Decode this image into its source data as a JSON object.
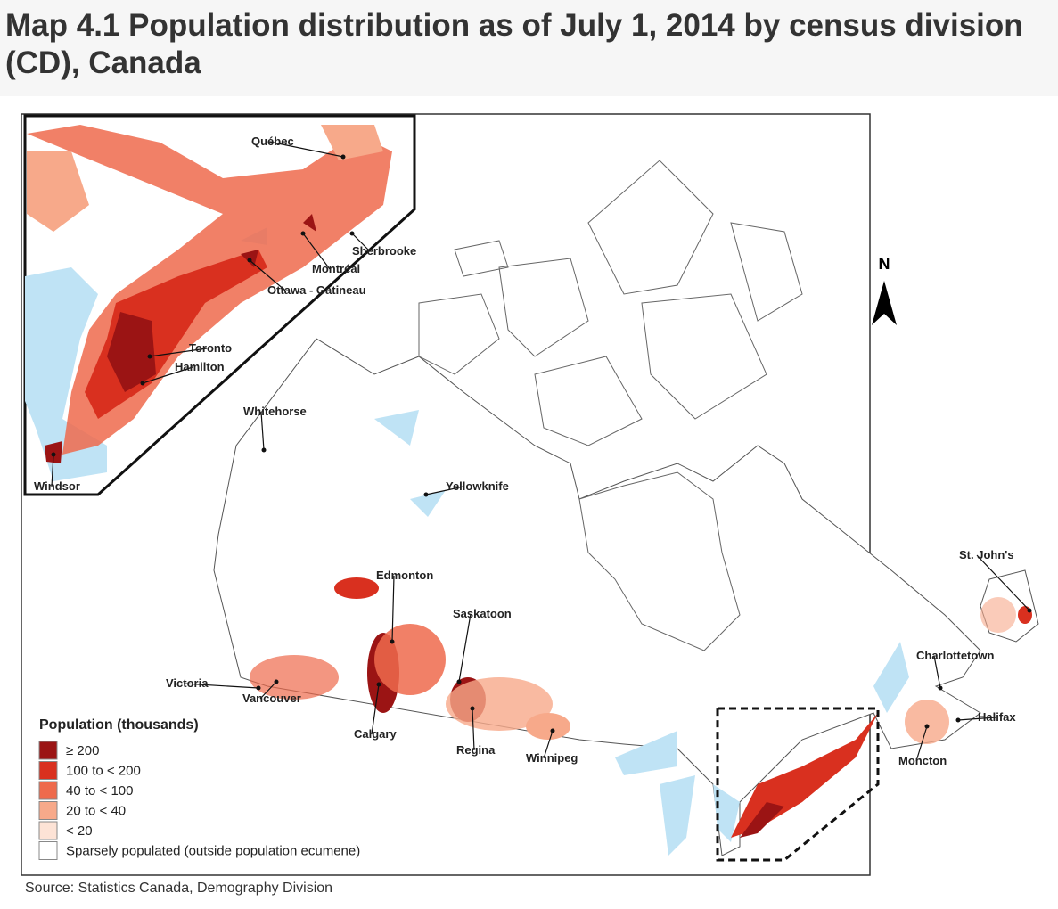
{
  "header": {
    "title": "Map 4.1 Population distribution as of July 1, 2014 by census division (CD), Canada"
  },
  "map": {
    "north": "N",
    "cities": [
      "Québec",
      "Sherbrooke",
      "Montréal",
      "Ottawa - Gatineau",
      "Toronto",
      "Hamilton",
      "Windsor",
      "Whitehorse",
      "Yellowknife",
      "Edmonton",
      "Saskatoon",
      "Victoria",
      "Vancouver",
      "Calgary",
      "Regina",
      "Winnipeg",
      "St. John's",
      "Charlottetown",
      "Halifax",
      "Moncton"
    ],
    "legend": {
      "title": "Population (thousands)",
      "items": [
        {
          "label": "≥ 200",
          "color": "#9b1414"
        },
        {
          "label": "100 to < 200",
          "color": "#d9301f"
        },
        {
          "label": "40 to < 100",
          "color": "#ee6a4c"
        },
        {
          "label": "20 to < 40",
          "color": "#f7a98a"
        },
        {
          "label": "< 20",
          "color": "#fde3d6"
        },
        {
          "label": "Sparsely populated (outside population ecumene)",
          "color": "#ffffff"
        }
      ]
    }
  },
  "footer": {
    "source": "Source: Statistics Canada, Demography Division"
  }
}
